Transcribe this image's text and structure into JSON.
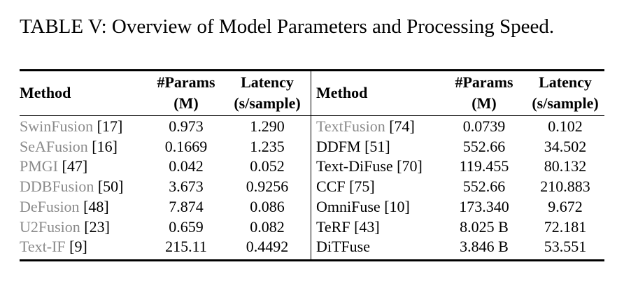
{
  "caption": "TABLE V: Overview of Model Parameters and Processing Speed.",
  "tables": [
    {
      "header": [
        [
          "Method"
        ],
        [
          "#Params",
          "(M)"
        ],
        [
          "Latency",
          "(s/sample)"
        ]
      ],
      "rows": [
        {
          "method": "SwinFusion",
          "ref": "[17]",
          "params": "0.973",
          "latency": "1.290",
          "muted": true
        },
        {
          "method": "SeAFusion",
          "ref": "[16]",
          "params": "0.1669",
          "latency": "1.235",
          "muted": true
        },
        {
          "method": "PMGI",
          "ref": "[47]",
          "params": "0.042",
          "latency": "0.052",
          "muted": true
        },
        {
          "method": "DDBFusion",
          "ref": "[50]",
          "params": "3.673",
          "latency": "0.9256",
          "muted": true
        },
        {
          "method": "DeFusion",
          "ref": "[48]",
          "params": "7.874",
          "latency": "0.086",
          "muted": true
        },
        {
          "method": "U2Fusion",
          "ref": "[23]",
          "params": "0.659",
          "latency": "0.082",
          "muted": true
        },
        {
          "method": "Text-IF",
          "ref": "[9]",
          "params": "215.11",
          "latency": "0.4492",
          "muted": true
        }
      ]
    },
    {
      "header": [
        [
          "Method"
        ],
        [
          "#Params",
          "(M)"
        ],
        [
          "Latency",
          "(s/sample)"
        ]
      ],
      "rows": [
        {
          "method": "TextFusion",
          "ref": "[74]",
          "params": "0.0739",
          "latency": "0.102",
          "muted": true
        },
        {
          "method": "DDFM",
          "ref": "[51]",
          "params": "552.66",
          "latency": "34.502",
          "muted": false
        },
        {
          "method": "Text-DiFuse",
          "ref": "[70]",
          "params": "119.455",
          "latency": "80.132",
          "muted": false
        },
        {
          "method": "CCF",
          "ref": "[75]",
          "params": "552.66",
          "latency": "210.883",
          "muted": false
        },
        {
          "method": "OmniFuse",
          "ref": "[10]",
          "params": "173.340",
          "latency": "9.672",
          "muted": false
        },
        {
          "method": "TeRF",
          "ref": "[43]",
          "params": "8.025 B",
          "latency": "72.181",
          "muted": false
        },
        {
          "method": "DiTFuse",
          "params": "3.846 B",
          "latency": "53.551",
          "muted": false
        }
      ]
    }
  ]
}
